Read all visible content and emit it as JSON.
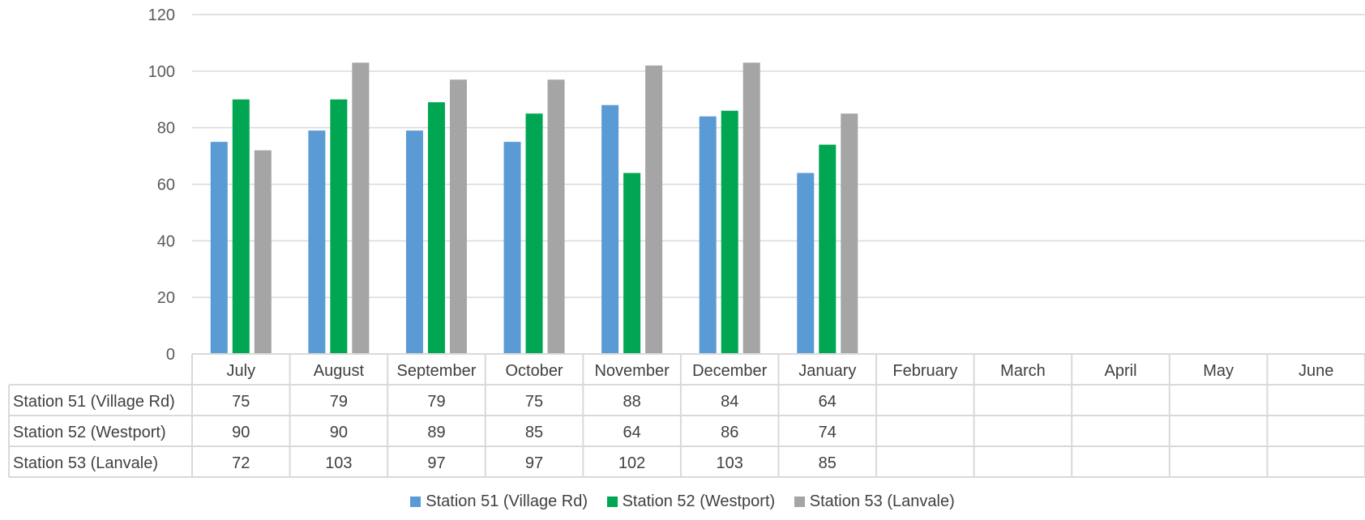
{
  "chart_data": {
    "type": "bar",
    "categories": [
      "July",
      "August",
      "September",
      "October",
      "November",
      "December",
      "January",
      "February",
      "March",
      "April",
      "May",
      "June"
    ],
    "series": [
      {
        "name": "Station 51 (Village Rd)",
        "color": "#5B9BD5",
        "values": [
          75,
          79,
          79,
          75,
          88,
          84,
          64,
          null,
          null,
          null,
          null,
          null
        ]
      },
      {
        "name": "Station 52 (Westport)",
        "color": "#00A651",
        "values": [
          90,
          90,
          89,
          85,
          64,
          86,
          74,
          null,
          null,
          null,
          null,
          null
        ]
      },
      {
        "name": "Station 53 (Lanvale)",
        "color": "#A5A5A5",
        "values": [
          72,
          103,
          97,
          97,
          102,
          103,
          85,
          null,
          null,
          null,
          null,
          null
        ]
      }
    ],
    "ylim": [
      0,
      120
    ],
    "yticks": [
      0,
      20,
      40,
      60,
      80,
      100,
      120
    ],
    "grid": true,
    "data_table": true,
    "legend_position": "bottom"
  }
}
